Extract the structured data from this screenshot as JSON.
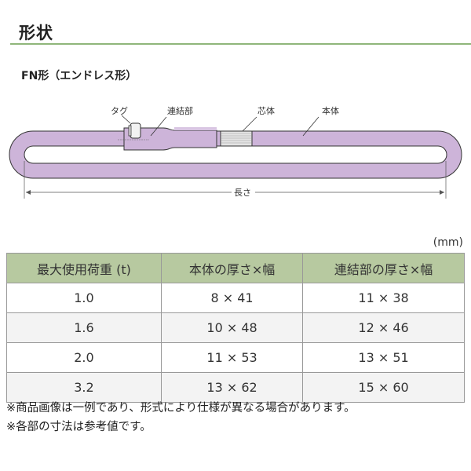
{
  "title": "形状",
  "subtitle": "FN形（エンドレス形）",
  "diagram": {
    "labels": {
      "tag": "タグ",
      "connector": "連結部",
      "core": "芯体",
      "body": "本体",
      "length": "長さ"
    },
    "colors": {
      "sling": "#cdb4d9",
      "outline": "#333333"
    }
  },
  "table": {
    "unit": "(mm)",
    "headers": [
      "最大使用荷重 (t)",
      "本体の厚さ×幅",
      "連結部の厚さ×幅"
    ],
    "rows": [
      [
        "1.0",
        "8 × 41",
        "11 × 38"
      ],
      [
        "1.6",
        "10 × 48",
        "12 × 46"
      ],
      [
        "2.0",
        "11 × 53",
        "13 × 51"
      ],
      [
        "3.2",
        "13 × 62",
        "15 × 60"
      ]
    ],
    "header_color": "#b7c9a0"
  },
  "notes": [
    "※商品画像は一例であり、形式により仕様が異なる場合があります。",
    "※各部の寸法は参考値です。"
  ]
}
